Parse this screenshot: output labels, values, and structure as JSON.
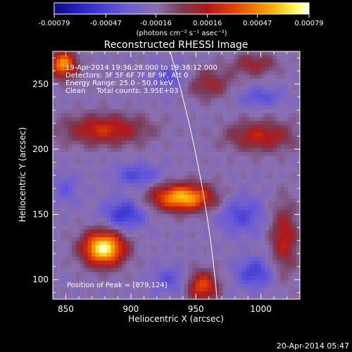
{
  "colorbar": {
    "tick_labels": [
      "-0.00079",
      "-0.00047",
      "-0.00016",
      "0.00016",
      "0.00047",
      "0.00079"
    ],
    "tick_values": [
      -0.00079,
      -0.00047,
      -0.00016,
      0.00016,
      0.00047,
      0.00079
    ],
    "unit_label": "(photons cm⁻² s⁻¹ asec⁻²)"
  },
  "image": {
    "title": "Reconstructed RHESSI Image",
    "info_lines": [
      "19-Apr-2014 19:36:28.000 to 19:38:12.000",
      "Detectors: 3F 5F 6F 7F 8F 9F, Att 0",
      "Energy Range: 25.0 - 50.0 keV",
      "Clean     Total counts: 3.95E+03"
    ],
    "peak_label": "Position of Peak = [879,124]",
    "peak_x": 879,
    "peak_y": 124
  },
  "axes": {
    "xlabel": "Heliocentric X (arcsec)",
    "ylabel": "Heliocentric Y (arcsec)",
    "xlim": [
      840,
      1030
    ],
    "ylim": [
      85,
      275
    ],
    "xticks": [
      850,
      900,
      950,
      1000
    ],
    "yticks": [
      100,
      150,
      200,
      250
    ],
    "xtick_labels": [
      "850",
      "900",
      "950",
      "1000"
    ],
    "ytick_labels": [
      "100",
      "150",
      "200",
      "250"
    ]
  },
  "footer": {
    "timestamp": "20-Apr-2014 05:47"
  },
  "colors": {
    "background": "#000000",
    "solar_limb": "#ffffff"
  },
  "sources": [
    {
      "x": 879,
      "y": 124,
      "amp": 1.0,
      "sx": 11,
      "sy": 9
    },
    {
      "x": 940,
      "y": 163,
      "amp": 0.85,
      "sx": 16,
      "sy": 7
    },
    {
      "x": 955,
      "y": 95,
      "amp": 0.55,
      "sx": 8,
      "sy": 8
    },
    {
      "x": 848,
      "y": 265,
      "amp": 0.75,
      "sx": 7,
      "sy": 7
    },
    {
      "x": 880,
      "y": 215,
      "amp": 0.45,
      "sx": 22,
      "sy": 8
    },
    {
      "x": 1000,
      "y": 210,
      "amp": 0.4,
      "sx": 18,
      "sy": 8
    },
    {
      "x": 1018,
      "y": 132,
      "amp": 0.4,
      "sx": 7,
      "sy": 18
    },
    {
      "x": 960,
      "y": 250,
      "amp": 0.3,
      "sx": 12,
      "sy": 8
    },
    {
      "x": 995,
      "y": 265,
      "amp": 0.3,
      "sx": 12,
      "sy": 6
    },
    {
      "x": 905,
      "y": 180,
      "amp": -0.3,
      "sx": 12,
      "sy": 6
    },
    {
      "x": 895,
      "y": 150,
      "amp": -0.4,
      "sx": 11,
      "sy": 8
    },
    {
      "x": 985,
      "y": 150,
      "amp": -0.3,
      "sx": 12,
      "sy": 10
    },
    {
      "x": 995,
      "y": 105,
      "amp": -0.35,
      "sx": 10,
      "sy": 8
    },
    {
      "x": 930,
      "y": 100,
      "amp": -0.25,
      "sx": 9,
      "sy": 7
    },
    {
      "x": 930,
      "y": 255,
      "amp": -0.25,
      "sx": 10,
      "sy": 7
    },
    {
      "x": 1000,
      "y": 240,
      "amp": -0.25,
      "sx": 12,
      "sy": 5
    },
    {
      "x": 850,
      "y": 170,
      "amp": -0.2,
      "sx": 7,
      "sy": 8
    }
  ]
}
